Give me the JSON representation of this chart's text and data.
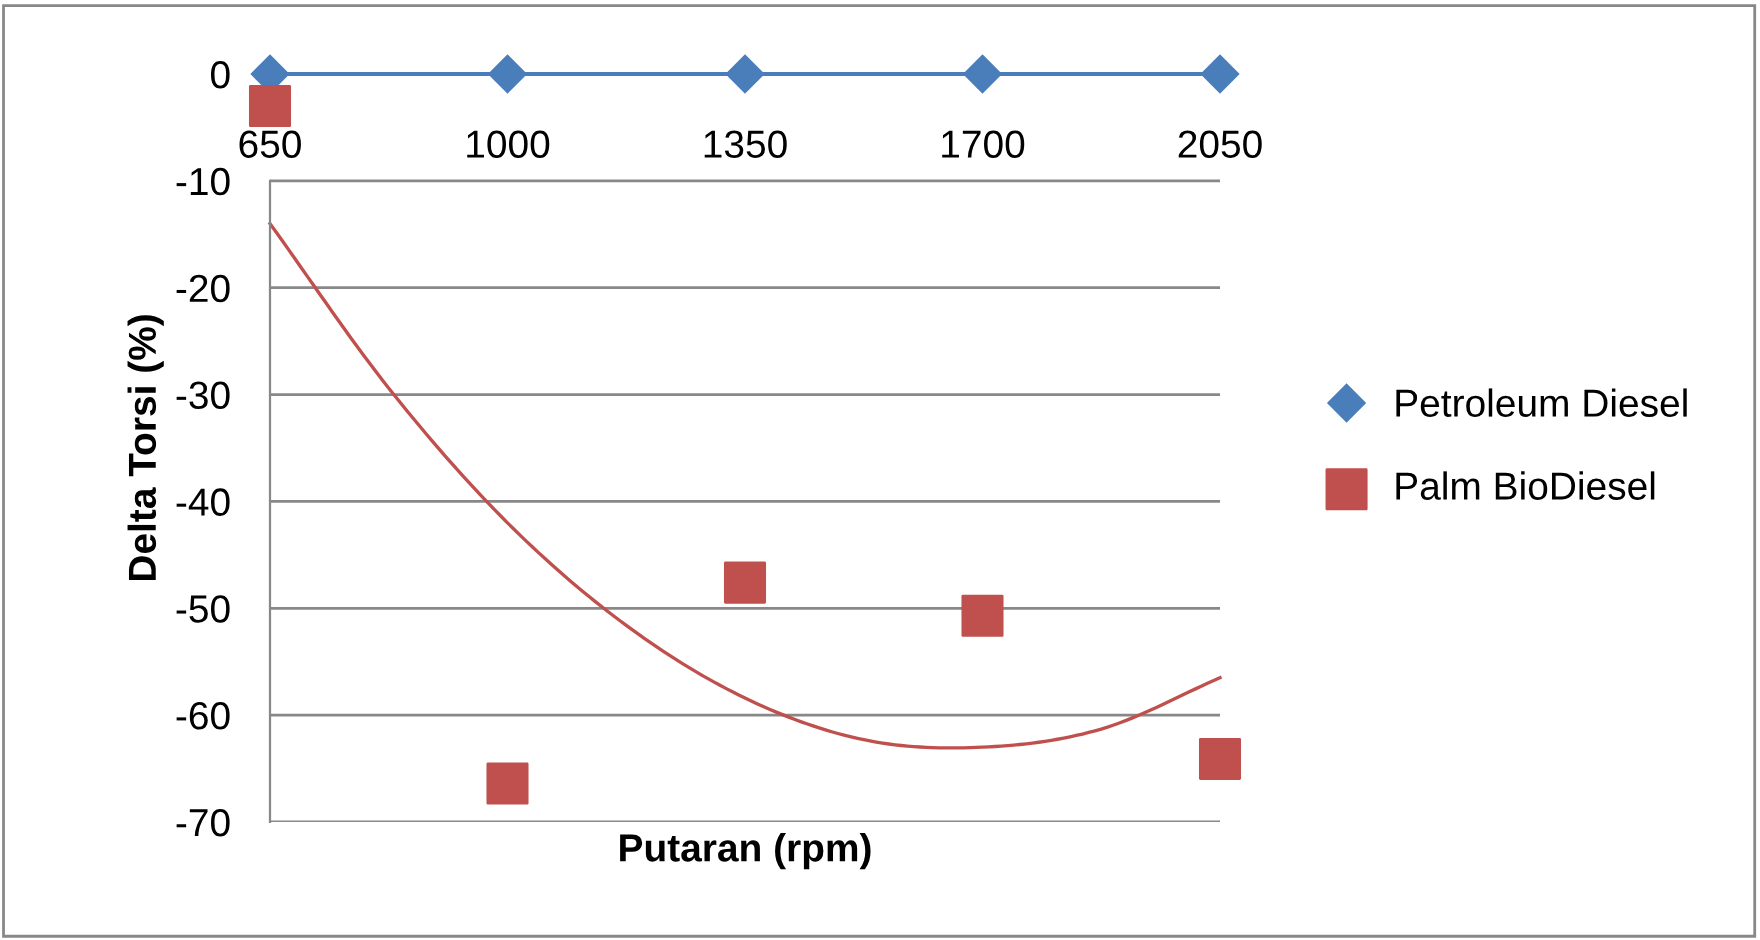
{
  "chart_data": {
    "type": "scatter",
    "xlabel": "Putaran (rpm)",
    "ylabel": "Delta Torsi (%)",
    "x": [
      650,
      1000,
      1350,
      1700,
      2050
    ],
    "series": [
      {
        "name": "Petroleum Diesel",
        "type": "line",
        "color": "#4a7ebb",
        "marker": "diamond",
        "values": [
          0,
          0,
          0,
          0,
          0
        ]
      },
      {
        "name": "Palm BioDiesel",
        "color": "#c0504d",
        "marker": "square",
        "values": [
          -3,
          -66.4,
          -47.6,
          -50.7,
          -64.1
        ]
      },
      {
        "type": "line",
        "color": "#c0504d",
        "marker": "none",
        "x": [
          650,
          825,
          1000,
          1175,
          1350,
          1525,
          1700,
          1875,
          2050
        ],
        "values": [
          -14,
          -29.4,
          -42,
          -51.6,
          -58.4,
          -62.3,
          -63,
          -61.3,
          -56.5
        ]
      }
    ],
    "xlim": [
      650,
      2050
    ],
    "xticks": [
      650,
      1000,
      1350,
      1700,
      2050
    ],
    "ylim": [
      -70,
      0
    ],
    "yticks": [
      -70,
      -60,
      -50,
      -40,
      -30,
      -20,
      -10,
      0
    ],
    "grid": "y",
    "legend": "right"
  }
}
